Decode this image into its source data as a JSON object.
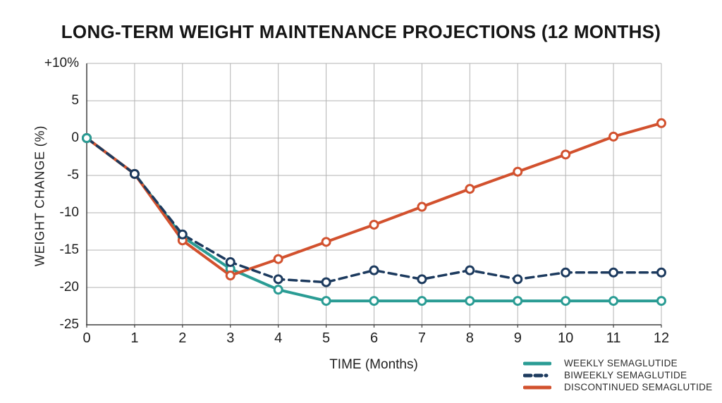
{
  "chart_data": {
    "type": "line",
    "title": "LONG-TERM WEIGHT MAINTENANCE PROJECTIONS (12 MONTHS)",
    "xlabel": "TIME (Months)",
    "ylabel": "WEIGHT CHANGE (%)",
    "x": [
      0,
      1,
      2,
      3,
      4,
      5,
      6,
      7,
      8,
      9,
      10,
      11,
      12
    ],
    "x_tick_labels": [
      "0",
      "1",
      "2",
      "3",
      "4",
      "5",
      "6",
      "7",
      "8",
      "9",
      "10",
      "11",
      "12"
    ],
    "xlim": [
      0,
      12
    ],
    "ylim": [
      -25,
      10
    ],
    "y_ticks": [
      {
        "value": 10,
        "label": "+10%"
      },
      {
        "value": 5,
        "label": "5"
      },
      {
        "value": 0,
        "label": "0"
      },
      {
        "value": -5,
        "label": "-5"
      },
      {
        "value": -10,
        "label": "-10"
      },
      {
        "value": -15,
        "label": "-15"
      },
      {
        "value": -20,
        "label": "-20"
      },
      {
        "value": -25,
        "label": "-25"
      }
    ],
    "grid": true,
    "grid_color": "#b3b3b3",
    "axis_color": "#3f3f3f",
    "text_color": "#1d1d1d",
    "background": "#ffffff",
    "legend_position": "bottom-right",
    "series": [
      {
        "id": "weekly",
        "name": "WEEKLY SEMAGLUTIDE",
        "color": "#2a9c94",
        "line_style": "solid",
        "marker": "circle-open",
        "values": [
          0,
          -4.8,
          -13.2,
          -17.5,
          -20.3,
          -21.8,
          -21.8,
          -21.8,
          -21.8,
          -21.8,
          -21.8,
          -21.8,
          -21.8
        ]
      },
      {
        "id": "biweekly",
        "name": "BIWEEKLY SEMAGLUTIDE",
        "color": "#1c3a5e",
        "line_style": "dashed",
        "marker": "circle-open",
        "values": [
          0,
          -4.8,
          -12.9,
          -16.6,
          -18.9,
          -19.3,
          -17.7,
          -18.9,
          -17.7,
          -18.9,
          -18,
          -18,
          -18
        ]
      },
      {
        "id": "discontinued",
        "name": "DISCONTINUED SEMAGLUTIDE",
        "color": "#d2512e",
        "line_style": "solid",
        "marker": "circle-open",
        "values": [
          0,
          -4.8,
          -13.7,
          -18.4,
          -16.2,
          -13.9,
          -11.6,
          -9.2,
          -6.8,
          -4.5,
          -2.2,
          0.2,
          2
        ]
      }
    ]
  }
}
